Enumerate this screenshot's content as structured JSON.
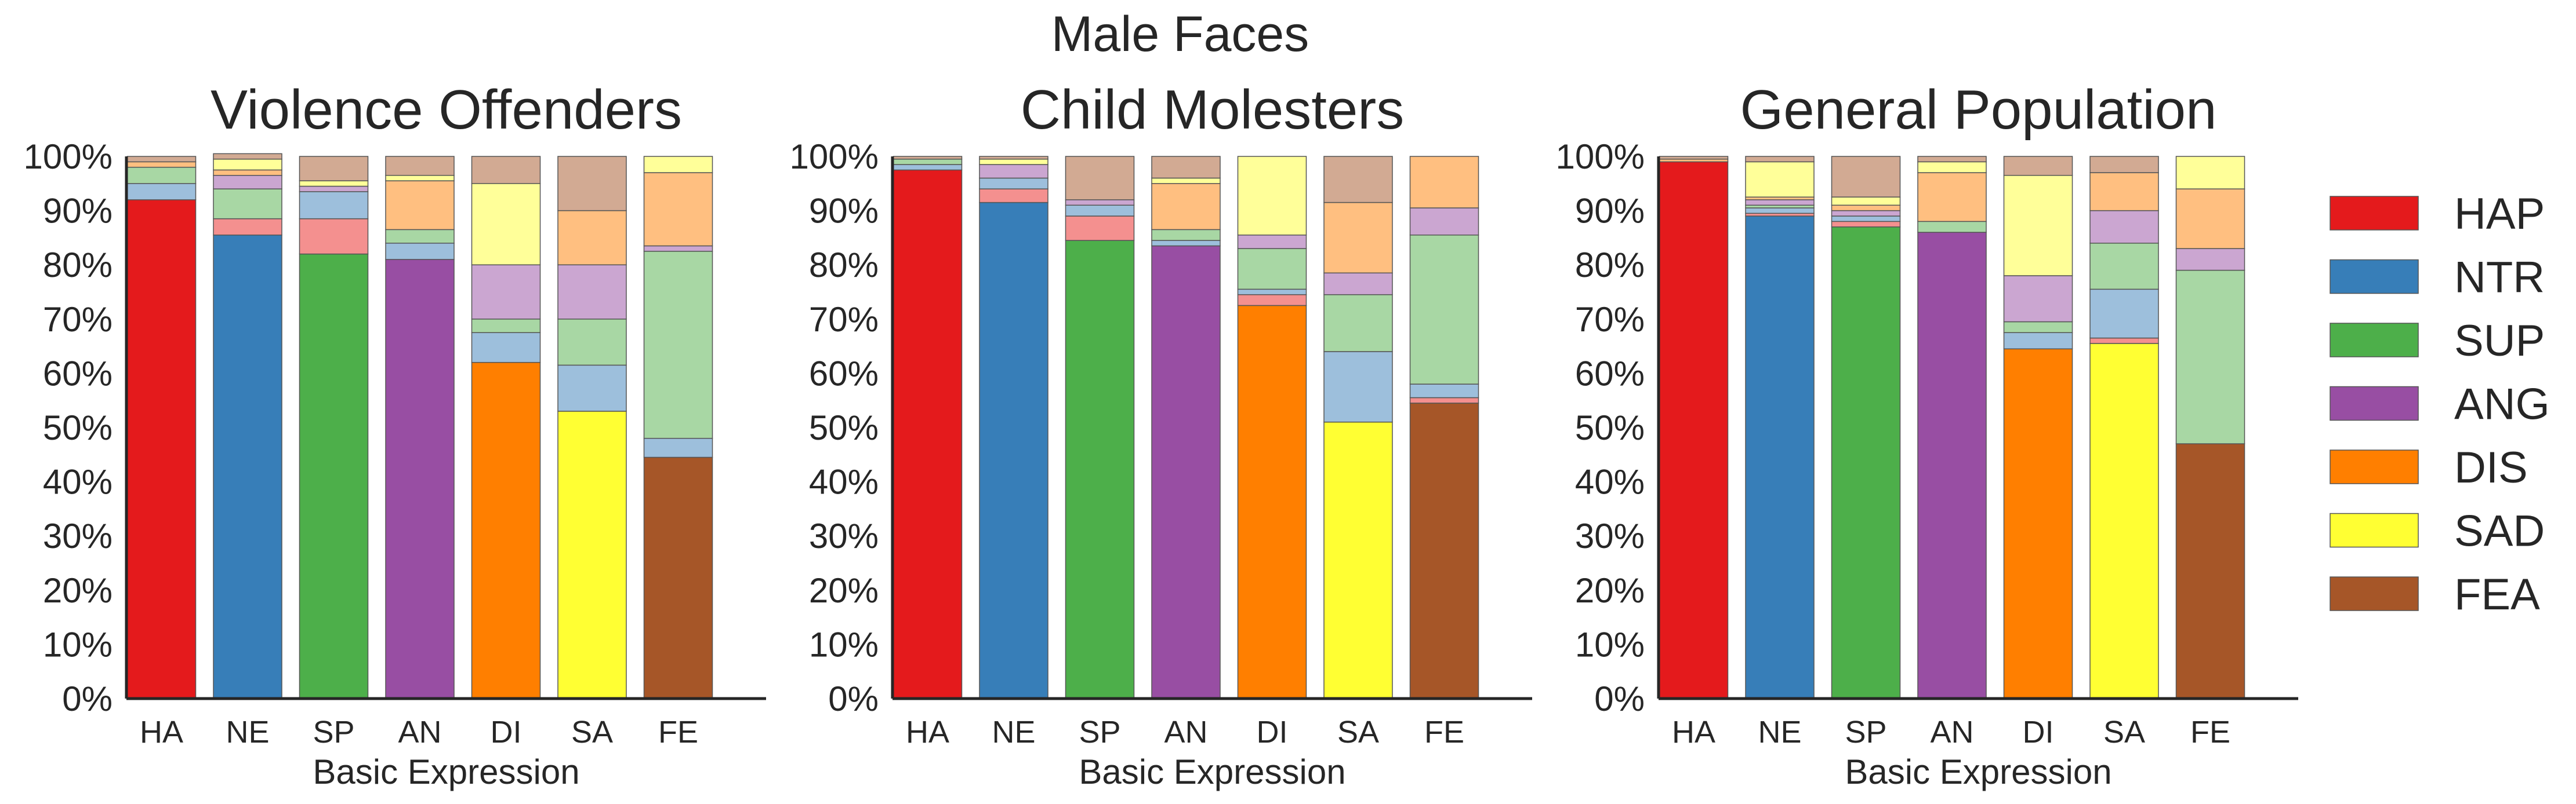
{
  "title": "Male Faces",
  "chart_data": [
    {
      "type": "bar",
      "stacked": true,
      "title": "Violence Offenders",
      "xlabel": "Basic Expression",
      "ylabel": "",
      "categories": [
        "HA",
        "NE",
        "SP",
        "AN",
        "DI",
        "SA",
        "FE"
      ],
      "ylim": [
        0,
        100
      ],
      "yticks": [
        "0%",
        "10%",
        "20%",
        "30%",
        "40%",
        "50%",
        "60%",
        "70%",
        "80%",
        "90%",
        "100%"
      ],
      "grid": false,
      "series": [
        {
          "name": "HAP",
          "values": [
            92,
            0,
            0,
            0,
            0,
            0,
            0
          ]
        },
        {
          "name": "NTR",
          "values": [
            0,
            85.5,
            0,
            0,
            0,
            0,
            0
          ]
        },
        {
          "name": "SUP",
          "values": [
            0,
            0,
            82,
            0,
            0,
            0,
            0
          ]
        },
        {
          "name": "ANG",
          "values": [
            0,
            0,
            0,
            81,
            0,
            0,
            0
          ]
        },
        {
          "name": "DIS",
          "values": [
            0,
            0,
            0,
            0,
            62,
            0,
            0
          ]
        },
        {
          "name": "SAD",
          "values": [
            0,
            0,
            0,
            0,
            0,
            53,
            0
          ]
        },
        {
          "name": "FEA",
          "values": [
            0,
            0,
            0,
            0,
            0,
            0,
            44.5
          ]
        },
        {
          "name": "HAP (light)",
          "values": [
            0,
            3,
            6.5,
            0,
            0,
            0,
            0
          ]
        },
        {
          "name": "NTR (light)",
          "values": [
            3,
            0,
            5,
            3,
            5.5,
            8.5,
            3.5
          ]
        },
        {
          "name": "SUP (light)",
          "values": [
            3,
            5.5,
            0,
            2.5,
            2.5,
            8.5,
            34.5
          ]
        },
        {
          "name": "ANG (light)",
          "values": [
            0,
            2.5,
            1,
            0,
            10,
            10,
            1
          ]
        },
        {
          "name": "DIS (light)",
          "values": [
            1,
            1,
            0,
            9,
            0,
            10,
            13.5
          ]
        },
        {
          "name": "SAD (light)",
          "values": [
            0,
            2,
            1,
            1,
            15,
            0,
            3
          ]
        },
        {
          "name": "FEA (light)",
          "values": [
            1,
            1,
            4.5,
            3.5,
            5,
            10,
            0
          ]
        }
      ],
      "legend": "none"
    },
    {
      "type": "bar",
      "stacked": true,
      "title": "Child Molesters",
      "xlabel": "Basic Expression",
      "ylabel": "",
      "categories": [
        "HA",
        "NE",
        "SP",
        "AN",
        "DI",
        "SA",
        "FE"
      ],
      "ylim": [
        0,
        100
      ],
      "yticks": [
        "0%",
        "10%",
        "20%",
        "30%",
        "40%",
        "50%",
        "60%",
        "70%",
        "80%",
        "90%",
        "100%"
      ],
      "grid": false,
      "series": [
        {
          "name": "HAP",
          "values": [
            97.5,
            0,
            0,
            0,
            0,
            0,
            0
          ]
        },
        {
          "name": "NTR",
          "values": [
            0,
            91.5,
            0,
            0,
            0,
            0,
            0
          ]
        },
        {
          "name": "SUP",
          "values": [
            0,
            0,
            84.5,
            0,
            0,
            0,
            0
          ]
        },
        {
          "name": "ANG",
          "values": [
            0,
            0,
            0,
            83.5,
            0,
            0,
            0
          ]
        },
        {
          "name": "DIS",
          "values": [
            0,
            0,
            0,
            0,
            72.5,
            0,
            0
          ]
        },
        {
          "name": "SAD",
          "values": [
            0,
            0,
            0,
            0,
            0,
            51,
            0
          ]
        },
        {
          "name": "FEA",
          "values": [
            0,
            0,
            0,
            0,
            0,
            0,
            54.5
          ]
        },
        {
          "name": "HAP (light)",
          "values": [
            0,
            2.5,
            4.5,
            0,
            2,
            0,
            1
          ]
        },
        {
          "name": "NTR (light)",
          "values": [
            1,
            2,
            2,
            1,
            1,
            13,
            2.5
          ]
        },
        {
          "name": "SUP (light)",
          "values": [
            1,
            0,
            0,
            2,
            7.5,
            10.5,
            27.5
          ]
        },
        {
          "name": "ANG (light)",
          "values": [
            0,
            2.5,
            1,
            0,
            2.5,
            4,
            5
          ]
        },
        {
          "name": "DIS (light)",
          "values": [
            0,
            0,
            0,
            8.5,
            0,
            13,
            9.5
          ]
        },
        {
          "name": "SAD (light)",
          "values": [
            0,
            1,
            0,
            1,
            14.5,
            0,
            0
          ]
        },
        {
          "name": "FEA (light)",
          "values": [
            0.5,
            0.5,
            8,
            4,
            0,
            8.5,
            0
          ]
        }
      ],
      "legend": "none"
    },
    {
      "type": "bar",
      "stacked": true,
      "title": "General Population",
      "xlabel": "Basic Expression",
      "ylabel": "",
      "categories": [
        "HA",
        "NE",
        "SP",
        "AN",
        "DI",
        "SA",
        "FE"
      ],
      "ylim": [
        0,
        100
      ],
      "yticks": [
        "0%",
        "10%",
        "20%",
        "30%",
        "40%",
        "50%",
        "60%",
        "70%",
        "80%",
        "90%",
        "100%"
      ],
      "grid": false,
      "series": [
        {
          "name": "HAP",
          "values": [
            99,
            0,
            0,
            0,
            0,
            0,
            0
          ]
        },
        {
          "name": "NTR",
          "values": [
            0,
            89,
            0,
            0,
            0,
            0,
            0
          ]
        },
        {
          "name": "SUP",
          "values": [
            0,
            0,
            87,
            0,
            0,
            0,
            0
          ]
        },
        {
          "name": "ANG",
          "values": [
            0,
            0,
            0,
            86,
            0,
            0,
            0
          ]
        },
        {
          "name": "DIS",
          "values": [
            0,
            0,
            0,
            0,
            64.5,
            0,
            0
          ]
        },
        {
          "name": "SAD",
          "values": [
            0,
            0,
            0,
            0,
            0,
            65.5,
            0
          ]
        },
        {
          "name": "FEA",
          "values": [
            0,
            0,
            0,
            0,
            0,
            0,
            47
          ]
        },
        {
          "name": "HAP (light)",
          "values": [
            0,
            0.5,
            1,
            0,
            0,
            1,
            0
          ]
        },
        {
          "name": "NTR (light)",
          "values": [
            0,
            1,
            1,
            0,
            3,
            9,
            0
          ]
        },
        {
          "name": "SUP (light)",
          "values": [
            0,
            0.5,
            0,
            2,
            2,
            8.5,
            32
          ]
        },
        {
          "name": "ANG (light)",
          "values": [
            0,
            1,
            1,
            0,
            8.5,
            6,
            4
          ]
        },
        {
          "name": "DIS (light)",
          "values": [
            0.5,
            0.5,
            1,
            9,
            0,
            7,
            11
          ]
        },
        {
          "name": "SAD (light)",
          "values": [
            0,
            6.5,
            1.5,
            2,
            18.5,
            0,
            6
          ]
        },
        {
          "name": "FEA (light)",
          "values": [
            0.5,
            1,
            7.5,
            1,
            3.5,
            3,
            0
          ]
        }
      ],
      "legend": "right"
    }
  ],
  "legend": [
    {
      "label": "HAP",
      "color": "#e41a1c"
    },
    {
      "label": "NTR",
      "color": "#377eb8"
    },
    {
      "label": "SUP",
      "color": "#4daf4a"
    },
    {
      "label": "ANG",
      "color": "#984ea3"
    },
    {
      "label": "DIS",
      "color": "#ff7f00"
    },
    {
      "label": "SAD",
      "color": "#ffff33"
    },
    {
      "label": "FEA",
      "color": "#a65628"
    }
  ],
  "colors": {
    "HAP": "#e41a1c",
    "NTR": "#377eb8",
    "SUP": "#4daf4a",
    "ANG": "#984ea3",
    "DIS": "#ff7f00",
    "SAD": "#ffff33",
    "FEA": "#a65628",
    "HAP (light)": "#f4908f",
    "NTR (light)": "#9dbfdc",
    "SUP (light)": "#a8d7a4",
    "ANG (light)": "#cba6d1",
    "DIS (light)": "#ffbf80",
    "SAD (light)": "#ffff99",
    "FEA (light)": "#d2aa93"
  }
}
